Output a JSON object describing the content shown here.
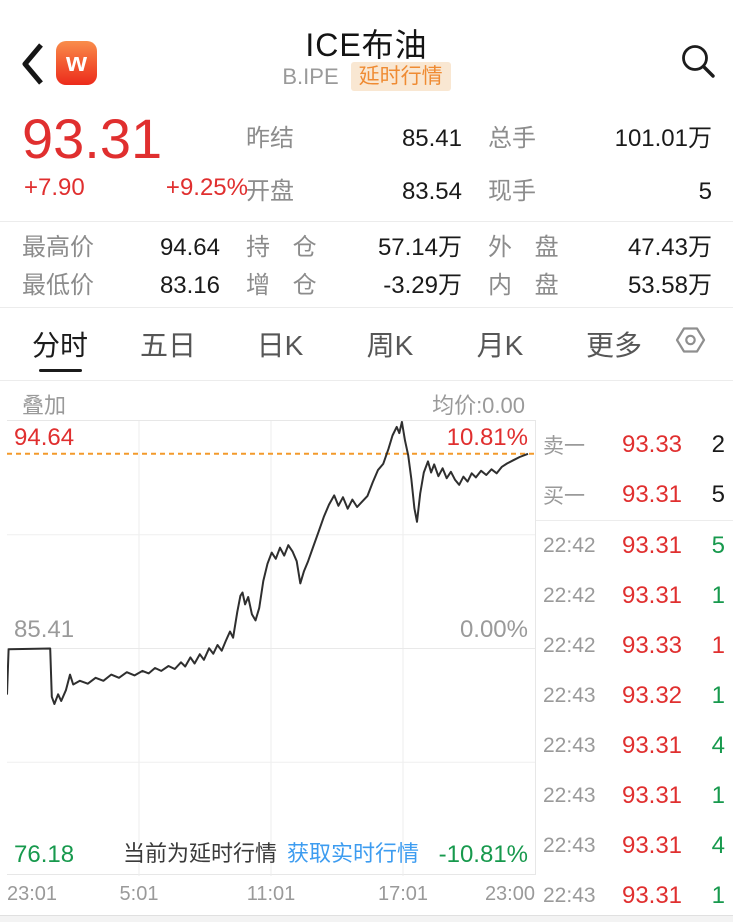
{
  "header": {
    "title": "ICE布油",
    "code": "B.IPE",
    "badge": "延时行情",
    "app_logo_letter": "w",
    "icons": {
      "back": "chevron-left",
      "search": "magnifier",
      "settings": "hexagon-gear"
    }
  },
  "quote": {
    "last": "93.31",
    "change": "+7.90",
    "change_pct": "+9.25%",
    "fields": [
      {
        "label": "昨结",
        "value": "85.41"
      },
      {
        "label": "开盘",
        "value": "83.54"
      },
      {
        "label": "总手",
        "value": "101.01万"
      },
      {
        "label": "现手",
        "value": "5"
      }
    ],
    "stats": [
      {
        "label": "最高价",
        "value": "94.64"
      },
      {
        "label": "持 仓",
        "value": "57.14万"
      },
      {
        "label": "外 盘",
        "value": "47.43万"
      },
      {
        "label": "最低价",
        "value": "83.16"
      },
      {
        "label": "增 仓",
        "value": "-3.29万"
      },
      {
        "label": "内 盘",
        "value": "53.58万"
      }
    ]
  },
  "tabs": {
    "items": [
      "分时",
      "五日",
      "日K",
      "周K",
      "月K",
      "更多"
    ],
    "selected": "分时"
  },
  "chart_data": {
    "type": "line",
    "title": "分时图 ICE布油",
    "overlay_label": "叠加",
    "avg_label": "均价:0.00",
    "x_axis": [
      "23:01",
      "5:01",
      "11:01",
      "17:01",
      "23:00"
    ],
    "ylim": [
      76.18,
      94.64
    ],
    "prev_settle": 85.41,
    "last_price_line": 93.31,
    "left_labels": {
      "high": "94.64",
      "mid": "85.41",
      "low": "76.18"
    },
    "right_labels": {
      "high": "10.81%",
      "mid": "0.00%",
      "low": "-10.81%"
    },
    "notice": "当前为延时行情",
    "notice_link": "获取实时行情",
    "grid": true,
    "series": [
      {
        "name": "price",
        "points": [
          [
            0.0,
            83.54
          ],
          [
            0.003,
            85.38
          ],
          [
            0.083,
            85.41
          ],
          [
            0.086,
            83.45
          ],
          [
            0.091,
            83.16
          ],
          [
            0.098,
            83.55
          ],
          [
            0.104,
            83.28
          ],
          [
            0.113,
            83.72
          ],
          [
            0.121,
            84.35
          ],
          [
            0.127,
            83.95
          ],
          [
            0.14,
            84.1
          ],
          [
            0.155,
            83.98
          ],
          [
            0.17,
            84.22
          ],
          [
            0.185,
            84.1
          ],
          [
            0.2,
            84.35
          ],
          [
            0.215,
            84.22
          ],
          [
            0.23,
            84.45
          ],
          [
            0.245,
            84.32
          ],
          [
            0.26,
            84.5
          ],
          [
            0.272,
            84.4
          ],
          [
            0.284,
            84.62
          ],
          [
            0.296,
            84.5
          ],
          [
            0.31,
            84.7
          ],
          [
            0.322,
            84.58
          ],
          [
            0.334,
            84.85
          ],
          [
            0.342,
            84.68
          ],
          [
            0.352,
            85.05
          ],
          [
            0.36,
            84.8
          ],
          [
            0.37,
            85.18
          ],
          [
            0.378,
            84.95
          ],
          [
            0.388,
            85.42
          ],
          [
            0.396,
            85.2
          ],
          [
            0.404,
            85.55
          ],
          [
            0.412,
            85.32
          ],
          [
            0.42,
            85.72
          ],
          [
            0.428,
            86.1
          ],
          [
            0.434,
            85.85
          ],
          [
            0.442,
            86.9
          ],
          [
            0.448,
            87.55
          ],
          [
            0.452,
            87.68
          ],
          [
            0.457,
            87.2
          ],
          [
            0.463,
            87.5
          ],
          [
            0.47,
            86.8
          ],
          [
            0.477,
            86.55
          ],
          [
            0.484,
            87.05
          ],
          [
            0.492,
            88.15
          ],
          [
            0.5,
            88.85
          ],
          [
            0.508,
            89.3
          ],
          [
            0.516,
            89.05
          ],
          [
            0.524,
            89.5
          ],
          [
            0.532,
            89.18
          ],
          [
            0.54,
            89.6
          ],
          [
            0.548,
            89.35
          ],
          [
            0.556,
            88.95
          ],
          [
            0.563,
            88.05
          ],
          [
            0.57,
            88.55
          ],
          [
            0.578,
            88.95
          ],
          [
            0.588,
            89.55
          ],
          [
            0.598,
            90.15
          ],
          [
            0.608,
            90.75
          ],
          [
            0.618,
            91.25
          ],
          [
            0.628,
            91.62
          ],
          [
            0.636,
            91.2
          ],
          [
            0.645,
            91.55
          ],
          [
            0.654,
            91.08
          ],
          [
            0.663,
            91.45
          ],
          [
            0.672,
            91.15
          ],
          [
            0.682,
            91.38
          ],
          [
            0.692,
            91.6
          ],
          [
            0.702,
            92.15
          ],
          [
            0.712,
            92.65
          ],
          [
            0.722,
            92.9
          ],
          [
            0.732,
            93.5
          ],
          [
            0.74,
            94.05
          ],
          [
            0.748,
            94.4
          ],
          [
            0.753,
            94.15
          ],
          [
            0.758,
            94.6
          ],
          [
            0.764,
            93.85
          ],
          [
            0.77,
            93.25
          ],
          [
            0.776,
            92.3
          ],
          [
            0.782,
            91.1
          ],
          [
            0.787,
            90.55
          ],
          [
            0.793,
            91.7
          ],
          [
            0.8,
            92.55
          ],
          [
            0.808,
            93.0
          ],
          [
            0.814,
            92.55
          ],
          [
            0.82,
            92.88
          ],
          [
            0.828,
            92.4
          ],
          [
            0.836,
            92.72
          ],
          [
            0.844,
            92.32
          ],
          [
            0.852,
            92.58
          ],
          [
            0.86,
            92.25
          ],
          [
            0.868,
            92.05
          ],
          [
            0.876,
            92.38
          ],
          [
            0.884,
            92.18
          ],
          [
            0.892,
            92.52
          ],
          [
            0.9,
            92.35
          ],
          [
            0.91,
            92.62
          ],
          [
            0.92,
            92.45
          ],
          [
            0.93,
            92.68
          ],
          [
            0.94,
            92.52
          ],
          [
            0.95,
            92.78
          ],
          [
            0.96,
            92.92
          ],
          [
            0.972,
            93.05
          ],
          [
            0.984,
            93.18
          ],
          [
            1.0,
            93.31
          ]
        ]
      }
    ]
  },
  "order_book": [
    {
      "label": "卖一",
      "price": "93.33",
      "qty": "2",
      "dir": "dark"
    },
    {
      "label": "买一",
      "price": "93.31",
      "qty": "5",
      "dir": "dark"
    }
  ],
  "trades": [
    {
      "time": "22:42",
      "price": "93.31",
      "qty": "5",
      "dir": "green"
    },
    {
      "time": "22:42",
      "price": "93.31",
      "qty": "1",
      "dir": "green"
    },
    {
      "time": "22:42",
      "price": "93.33",
      "qty": "1",
      "dir": "red"
    },
    {
      "time": "22:43",
      "price": "93.32",
      "qty": "1",
      "dir": "green"
    },
    {
      "time": "22:43",
      "price": "93.31",
      "qty": "4",
      "dir": "green"
    },
    {
      "time": "22:43",
      "price": "93.31",
      "qty": "1",
      "dir": "green"
    },
    {
      "time": "22:43",
      "price": "93.31",
      "qty": "4",
      "dir": "green"
    },
    {
      "time": "22:43",
      "price": "93.31",
      "qty": "1",
      "dir": "green"
    }
  ],
  "colors": {
    "up_red": "#e02f2f",
    "down_green": "#17994d",
    "link_blue": "#3d9cf0",
    "dashed_orange": "#f39a2b",
    "badge_orange": "#ef8b33",
    "badge_bg": "#f9e7d2",
    "text_dark": "#1a1a1a",
    "text_gray": "#8c8c8c",
    "chart_line": "#2f2f2f"
  }
}
